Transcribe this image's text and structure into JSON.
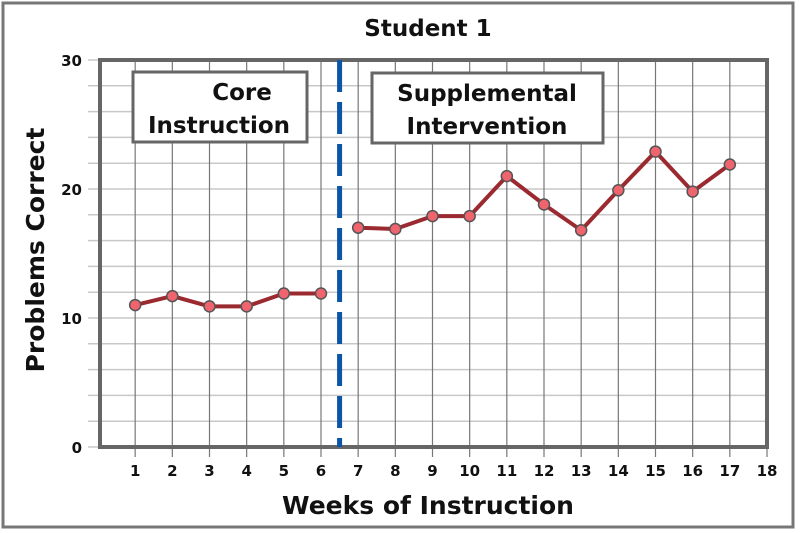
{
  "chart_data": {
    "type": "line",
    "title": "Student 1",
    "xlabel": "Weeks of Instruction",
    "ylabel": "Problems Correct",
    "x": [
      1,
      2,
      3,
      4,
      5,
      6,
      7,
      8,
      9,
      10,
      11,
      12,
      13,
      14,
      15,
      16,
      17
    ],
    "series": [
      {
        "name": "Student 1",
        "values": [
          11,
          11.7,
          10.9,
          10.9,
          11.9,
          11.9,
          17,
          16.9,
          17.9,
          17.9,
          21,
          18.8,
          16.8,
          19.9,
          22.9,
          19.8,
          21.9
        ]
      }
    ],
    "x_ticks": [
      "1",
      "2",
      "3",
      "4",
      "5",
      "6",
      "7",
      "8",
      "9",
      "10",
      "11",
      "12",
      "13",
      "14",
      "15",
      "16",
      "17",
      "18"
    ],
    "y_ticks": [
      "0",
      "10",
      "20",
      "30"
    ],
    "xlim": [
      0,
      18
    ],
    "ylim": [
      0,
      30
    ],
    "grid": true,
    "grid_y_step": 2,
    "phase_change_x": 6.5,
    "annotations": [
      {
        "text_line1": "Core",
        "text_line2": "Instruction",
        "phase": "weeks 1-6"
      },
      {
        "text_line1": "Supplemental",
        "text_line2": "Intervention",
        "phase": "weeks 7-17"
      }
    ],
    "colors": {
      "line": "#9b2a30",
      "marker_fill": "#f0646e",
      "marker_stroke": "#555555",
      "phase_line": "#0a55a8",
      "frame": "#666666",
      "grid_vertical": "#777777",
      "grid_horizontal": "#c8c8c8"
    }
  }
}
